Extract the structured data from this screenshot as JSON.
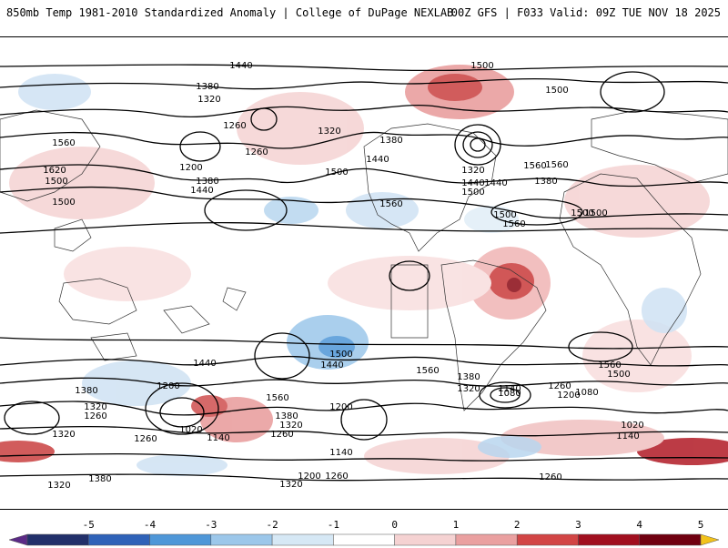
{
  "header": {
    "title_left": "850mb Temp 1981-2010 Standardized Anomaly | College of DuPage NEXLAB",
    "title_right": "00Z GFS | F033 Valid: 09Z TUE NOV 18 2025"
  },
  "contour_labels": [
    "1440",
    "1380",
    "1320",
    "1260",
    "1560",
    "1620",
    "1500",
    "1200",
    "1440",
    "1380",
    "1260",
    "1320",
    "1500",
    "1560",
    "1380",
    "1440",
    "1320",
    "1500",
    "1560",
    "1440",
    "1440",
    "1380",
    "1500",
    "1560",
    "1500",
    "1560",
    "1500",
    "1500",
    "1500",
    "1500",
    "1440",
    "1380",
    "1320",
    "1260",
    "1200",
    "1020",
    "1140",
    "1080",
    "1560",
    "1380",
    "1320",
    "1260",
    "1200",
    "1140",
    "1500",
    "1440",
    "1560",
    "1380",
    "1320",
    "1140",
    "1260",
    "1200",
    "1080",
    "1560",
    "1500",
    "1020",
    "1140",
    "1320",
    "1260",
    "1200",
    "1320",
    "1260",
    "1380",
    "1320",
    "1260"
  ],
  "colorbar": {
    "ticks": [
      "-5",
      "-4",
      "-3",
      "-2",
      "-1",
      "0",
      "1",
      "2",
      "3",
      "4",
      "5"
    ],
    "colors": [
      "#5b2a86",
      "#22306a",
      "#2f62b8",
      "#4f97d8",
      "#9cc7ea",
      "#d6e8f5",
      "#ffffff",
      "#f5d2d2",
      "#eaa0a0",
      "#d24545",
      "#a10f1f",
      "#700010",
      "#f2c21b"
    ]
  }
}
